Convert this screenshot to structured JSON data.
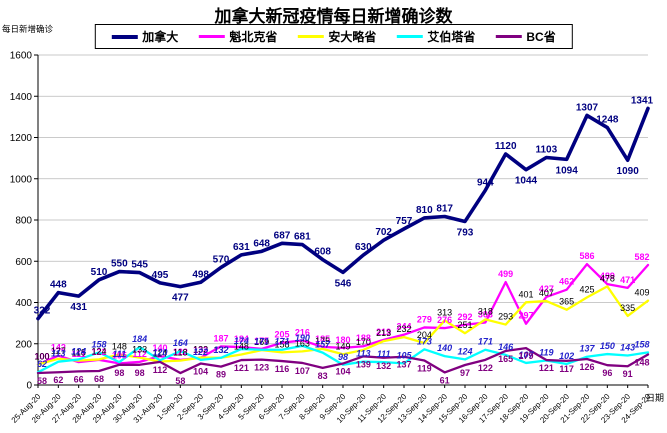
{
  "title": "加拿大新冠疫情每日新增确诊数",
  "y_axis_title": "每日新增确诊",
  "x_axis_title": "日期",
  "chart_data": {
    "type": "line",
    "x": [
      "25-Aug-20",
      "26-Aug-20",
      "27-Aug-20",
      "28-Aug-20",
      "29-Aug-20",
      "30-Aug-20",
      "31-Aug-20",
      "1-Sep-20",
      "2-Sep-20",
      "3-Sep-20",
      "4-Sep-20",
      "5-Sep-20",
      "6-Sep-20",
      "7-Sep-20",
      "8-Sep-20",
      "9-Sep-20",
      "10-Sep-20",
      "11-Sep-20",
      "12-Sep-20",
      "13-Sep-20",
      "14-Sep-20",
      "15-Sep-20",
      "16-Sep-20",
      "17-Sep-20",
      "18-Sep-20",
      "19-Sep-20",
      "20-Sep-20",
      "21-Sep-20",
      "22-Sep-20",
      "23-Sep-20",
      "24-Sep-20"
    ],
    "ylim": [
      0,
      1600
    ],
    "y_ticks": [
      0,
      200,
      400,
      600,
      800,
      1000,
      1200,
      1400,
      1600
    ],
    "grid": true,
    "legend_position": "top",
    "series": [
      {
        "key": "canada",
        "name": "加拿大",
        "color": "#000080",
        "values": [
          322,
          448,
          431,
          510,
          550,
          545,
          495,
          477,
          498,
          570,
          631,
          648,
          687,
          681,
          608,
          546,
          630,
          702,
          757,
          810,
          817,
          793,
          944,
          1120,
          1044,
          1103,
          1094,
          1307,
          1248,
          1090,
          1341
        ]
      },
      {
        "key": "quebec",
        "name": "魁北克省",
        "color": "#FF00FF",
        "values": [
          100,
          142,
          111,
          122,
          105,
          112,
          140,
          122,
          132,
          187,
          184,
          175,
          205,
          216,
          185,
          180,
          188,
          219,
          244,
          279,
          276,
          292,
          303,
          499,
          297,
          427,
          462,
          586,
          489,
          471,
          582
        ]
      },
      {
        "key": "ontario",
        "name": "安大略省",
        "color": "#FFFF00",
        "values": [
          100,
          127,
          118,
          124,
          148,
          133,
          114,
          118,
          133,
          132,
          148,
          169,
          158,
          163,
          175,
          149,
          170,
          213,
          232,
          204,
          313,
          251,
          318,
          293,
          401,
          407,
          365,
          425,
          478,
          335,
          409
        ]
      },
      {
        "key": "alberta",
        "name": "艾伯塔省",
        "color": "#00FFFF",
        "values": [
          62,
          113,
          124,
          158,
          111,
          184,
          120,
          164,
          122,
          132,
          174,
          171,
          171,
          190,
          157,
          98,
          113,
          111,
          105,
          173,
          140,
          124,
          171,
          146,
          107,
          119,
          102,
          137,
          150,
          143,
          158
        ]
      },
      {
        "key": "bc",
        "name": "BC省",
        "color": "#800080",
        "values": [
          58,
          62,
          66,
          68,
          98,
          98,
          112,
          58,
          104,
          89,
          121,
          123,
          116,
          107,
          83,
          104,
          139,
          132,
          137,
          119,
          61,
          97,
          122,
          165,
          179,
          121,
          117,
          126,
          96,
          91,
          148
        ]
      }
    ]
  }
}
